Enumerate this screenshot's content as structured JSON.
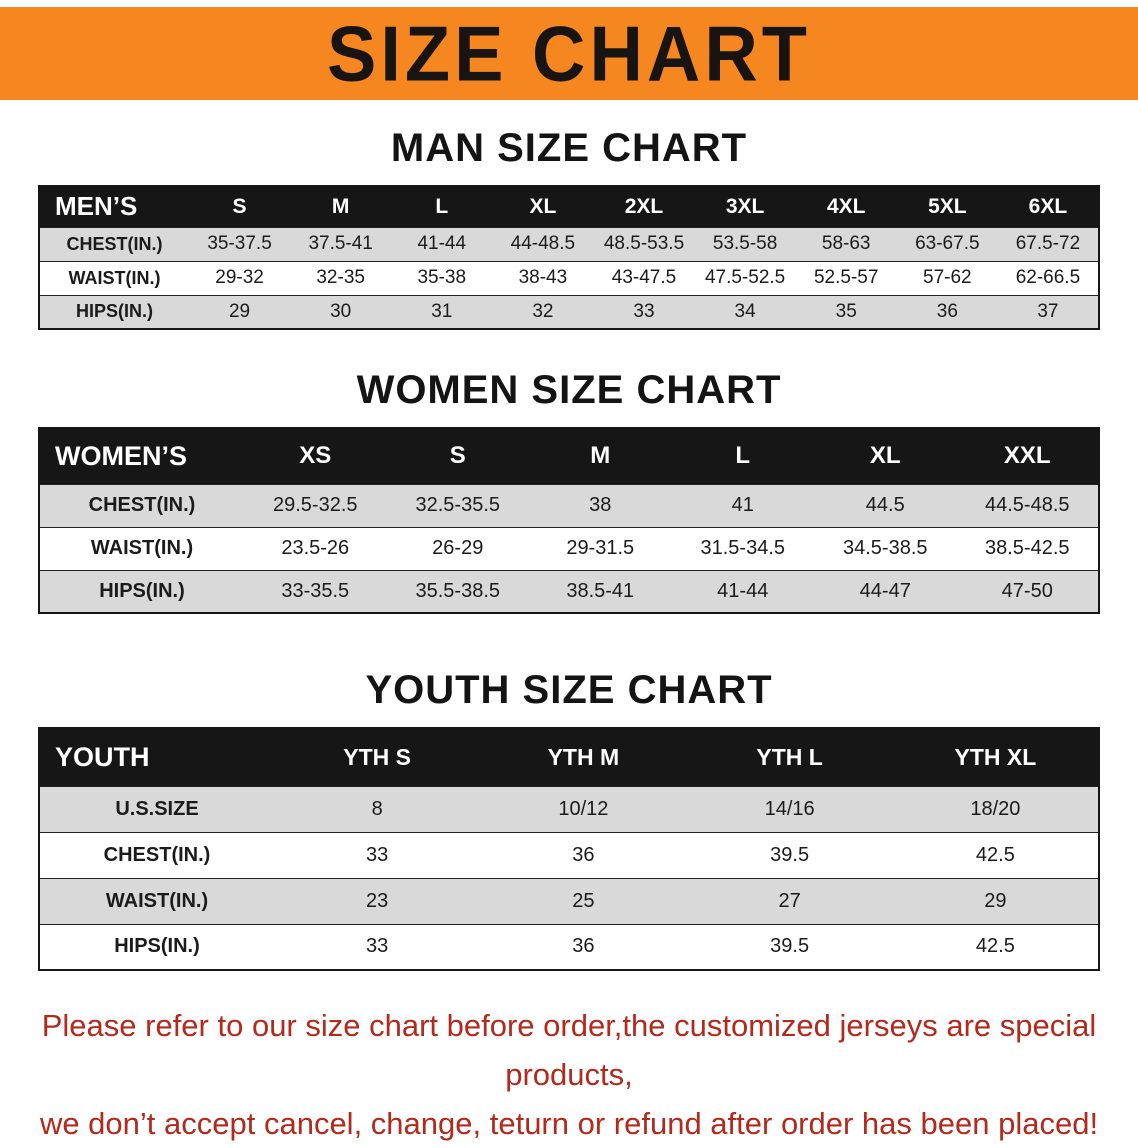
{
  "colors": {
    "banner-orange": "#f6861f",
    "header-black": "#161616",
    "stripe-gray": "#d9d9d9",
    "warning-red": "#b3291c"
  },
  "banner": {
    "title": "SIZE CHART"
  },
  "men": {
    "heading": "MAN SIZE CHART",
    "header": [
      "MEN’S",
      "S",
      "M",
      "L",
      "XL",
      "2XL",
      "3XL",
      "4XL",
      "5XL",
      "6XL"
    ],
    "rows": [
      {
        "label": "CHEST(IN.)",
        "values": [
          "35-37.5",
          "37.5-41",
          "41-44",
          "44-48.5",
          "48.5-53.5",
          "53.5-58",
          "58-63",
          "63-67.5",
          "67.5-72"
        ]
      },
      {
        "label": "WAIST(IN.)",
        "values": [
          "29-32",
          "32-35",
          "35-38",
          "38-43",
          "43-47.5",
          "47.5-52.5",
          "52.5-57",
          "57-62",
          "62-66.5"
        ]
      },
      {
        "label": "HIPS(IN.)",
        "values": [
          "29",
          "30",
          "31",
          "32",
          "33",
          "34",
          "35",
          "36",
          "37"
        ]
      }
    ]
  },
  "women": {
    "heading": "WOMEN SIZE CHART",
    "header": [
      "WOMEN’S",
      "XS",
      "S",
      "M",
      "L",
      "XL",
      "XXL"
    ],
    "rows": [
      {
        "label": "CHEST(IN.)",
        "values": [
          "29.5-32.5",
          "32.5-35.5",
          "38",
          "41",
          "44.5",
          "44.5-48.5"
        ]
      },
      {
        "label": "WAIST(IN.)",
        "values": [
          "23.5-26",
          "26-29",
          "29-31.5",
          "31.5-34.5",
          "34.5-38.5",
          "38.5-42.5"
        ]
      },
      {
        "label": "HIPS(IN.)",
        "values": [
          "33-35.5",
          "35.5-38.5",
          "38.5-41",
          "41-44",
          "44-47",
          "47-50"
        ]
      }
    ]
  },
  "youth": {
    "heading": "YOUTH SIZE CHART",
    "header": [
      "YOUTH",
      "YTH S",
      "YTH M",
      "YTH L",
      "YTH XL"
    ],
    "rows": [
      {
        "label": "U.S.SIZE",
        "values": [
          "8",
          "10/12",
          "14/16",
          "18/20"
        ]
      },
      {
        "label": "CHEST(IN.)",
        "values": [
          "33",
          "36",
          "39.5",
          "42.5"
        ]
      },
      {
        "label": "WAIST(IN.)",
        "values": [
          "23",
          "25",
          "27",
          "29"
        ]
      },
      {
        "label": "HIPS(IN.)",
        "values": [
          "33",
          "36",
          "39.5",
          "42.5"
        ]
      }
    ]
  },
  "disclaimer": {
    "line1": "Please refer to our size chart before order,the customized jerseys are special products,",
    "line2": "we don’t accept cancel, change, teturn or refund after order has been placed!"
  }
}
